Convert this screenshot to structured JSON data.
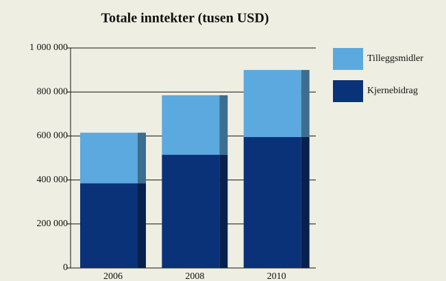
{
  "chart_data": {
    "type": "stacked_bar",
    "title": "Totale inntekter (tusen USD)",
    "categories": [
      "2006",
      "2008",
      "2010"
    ],
    "series": [
      {
        "name": "Kjernebidrag",
        "color": "#0a3278",
        "values": [
          385000,
          515000,
          595000
        ]
      },
      {
        "name": "Tilleggsmidler",
        "color": "#5ba9de",
        "values": [
          230000,
          270000,
          305000
        ]
      }
    ],
    "ylim": [
      0,
      1000000
    ],
    "yticks": [
      0,
      {
        "value": 200000,
        "label": "200 000"
      },
      {
        "value": 400000,
        "label": "400 000"
      },
      {
        "value": 600000,
        "label": "600 000"
      },
      {
        "value": 800000,
        "label": "800 000"
      },
      {
        "value": 1000000,
        "label": "1 000 000"
      }
    ],
    "grid": true,
    "legend": "right"
  }
}
